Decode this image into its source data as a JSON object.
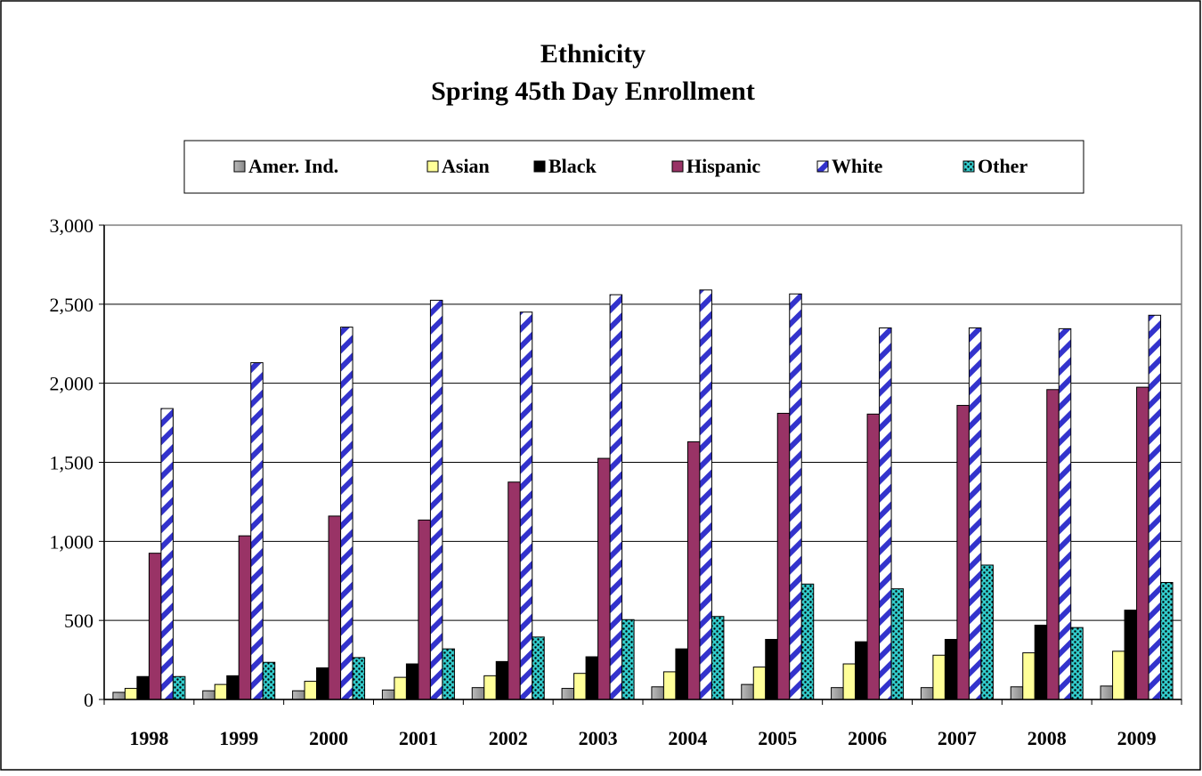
{
  "chart_data": {
    "type": "bar",
    "title": "Ethnicity",
    "subtitle": "Spring 45th Day Enrollment",
    "xlabel": "",
    "ylabel": "",
    "ylim": [
      0,
      3000
    ],
    "yticks": [
      "0",
      "500",
      "1,000",
      "1,500",
      "2,000",
      "2,500",
      "3,000"
    ],
    "ytick_values": [
      0,
      500,
      1000,
      1500,
      2000,
      2500,
      3000
    ],
    "grid": true,
    "legend_position": "top",
    "categories": [
      "1998",
      "1999",
      "2000",
      "2001",
      "2002",
      "2003",
      "2004",
      "2005",
      "2006",
      "2007",
      "2008",
      "2009"
    ],
    "series": [
      {
        "name": "Amer. Ind.",
        "color": "#999999",
        "pattern": "solid-gray",
        "values": [
          45,
          55,
          55,
          60,
          75,
          70,
          80,
          95,
          75,
          75,
          80,
          85
        ]
      },
      {
        "name": "Asian",
        "color": "#FFFF99",
        "pattern": "solid-yellow",
        "values": [
          70,
          95,
          115,
          140,
          150,
          165,
          175,
          205,
          225,
          280,
          295,
          305
        ]
      },
      {
        "name": "Black",
        "color": "#000000",
        "pattern": "solid-black",
        "values": [
          145,
          150,
          200,
          225,
          240,
          270,
          320,
          380,
          365,
          380,
          470,
          565
        ]
      },
      {
        "name": "Hispanic",
        "color": "#993366",
        "pattern": "solid-maroon",
        "values": [
          925,
          1035,
          1160,
          1135,
          1375,
          1525,
          1630,
          1810,
          1805,
          1860,
          1960,
          1975
        ]
      },
      {
        "name": "White",
        "color": "#3333CC",
        "pattern": "diagonal-stripes-blue",
        "values": [
          1840,
          2130,
          2355,
          2525,
          2450,
          2560,
          2590,
          2565,
          2350,
          2350,
          2345,
          2430
        ]
      },
      {
        "name": "Other",
        "color": "#33CCCC",
        "pattern": "dots-teal",
        "values": [
          145,
          235,
          265,
          320,
          395,
          505,
          525,
          730,
          700,
          850,
          455,
          740
        ]
      }
    ]
  }
}
